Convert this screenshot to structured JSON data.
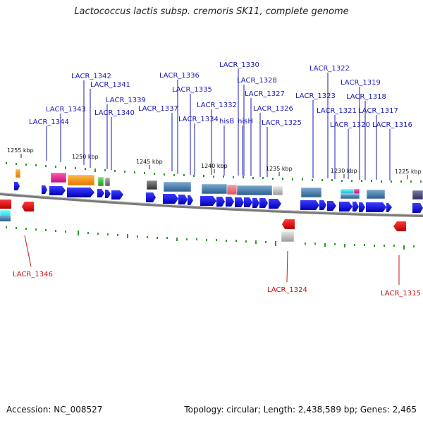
{
  "title": "Lactococcus lactis subsp. cremoris SK11, complete genome",
  "footer": {
    "accession": "Accession: NC_008527",
    "summary": "Topology: circular; Length: 2,438,589 bp; Genes: 2,465"
  },
  "scale_ticks": [
    "1255 kbp",
    "1250 kbp",
    "1245 kbp",
    "1240 kbp",
    "1235 kbp",
    "1230 kbp",
    "1225 kbp"
  ],
  "gene_labels_top": [
    "LACR_1342",
    "LACR_1341",
    "LACR_1343",
    "LACR_1339",
    "LACR_1344",
    "LACR_1340",
    "LACR_1336",
    "LACR_1335",
    "LACR_1337",
    "LACR_1334",
    "LACR_1332",
    "LACR_1330",
    "LACR_1328",
    "hisB",
    "hisH",
    "LACR_1327",
    "LACR_1326",
    "LACR_1325",
    "LACR_1322",
    "LACR_1323",
    "LACR_1321",
    "LACR_1319",
    "LACR_1318",
    "LACR_1320",
    "LACR_1317",
    "LACR_1316"
  ],
  "gene_labels_bottom": [
    "LACR_1346",
    "LACR_1324",
    "LACR_1315"
  ],
  "colors": {
    "forward_gene": "#1515e6",
    "reverse_gene": "#e01010",
    "top_label": "#1a1ab8",
    "bottom_label": "#c81414",
    "backbone": "#777777",
    "gc_tick": "#228b22"
  }
}
